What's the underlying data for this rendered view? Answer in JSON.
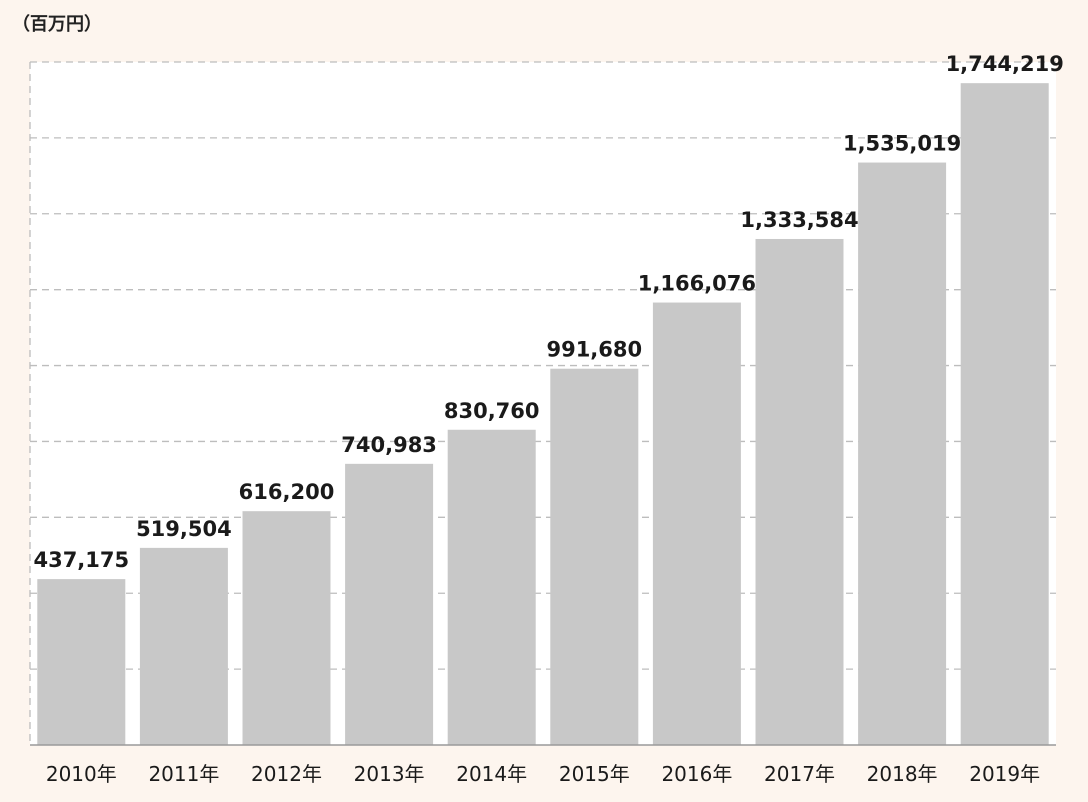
{
  "unit_label": "（百万円）",
  "colors": {
    "background": "#fdf5ee",
    "plot_background": "#ffffff",
    "bar": "#c8c8c8",
    "grid": "#bdbdbd",
    "text": "#1a1a1a"
  },
  "chart_data": {
    "type": "bar",
    "title": "",
    "xlabel": "",
    "ylabel": "（百万円）",
    "categories": [
      "2010年",
      "2011年",
      "2012年",
      "2013年",
      "2014年",
      "2015年",
      "2016年",
      "2017年",
      "2018年",
      "2019年"
    ],
    "values": [
      437175,
      519504,
      616200,
      740983,
      830760,
      991680,
      1166076,
      1333584,
      1535019,
      1744219
    ],
    "value_labels": [
      "437,175",
      "519,504",
      "616,200",
      "740,983",
      "830,760",
      "991,680",
      "1,166,076",
      "1,333,584",
      "1,535,019",
      "1,744,219"
    ],
    "ylim": [
      0,
      1800000
    ],
    "grid": true,
    "grid_style": "dashed",
    "legend": "none"
  }
}
